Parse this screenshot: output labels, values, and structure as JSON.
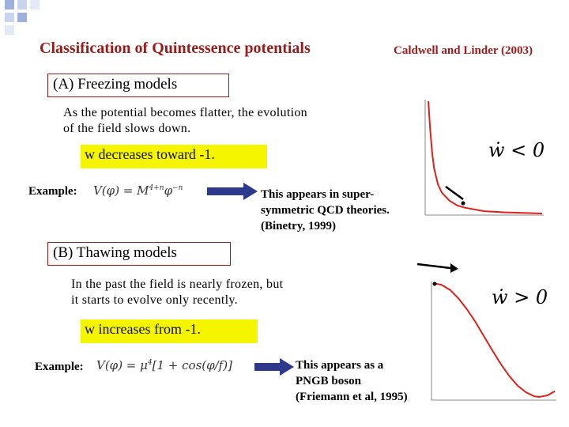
{
  "slide": {
    "title": "Classification of Quintessence potentials",
    "citation": "Caldwell and Linder (2003)"
  },
  "freezing": {
    "heading": "(A) Freezing models",
    "description_line1": "As the potential becomes flatter, the evolution",
    "description_line2": "of the field slows down.",
    "highlight": "w decreases toward  -1.",
    "example_label": "Example:",
    "formula": "V(φ) = M",
    "formula_exponent": "4+n",
    "formula_tail": "φ",
    "formula_tail_exponent": "−n",
    "note_line1": "This appears in super-",
    "note_line2": "symmetric QCD theories.",
    "note_line3": "(Binetry, 1999)",
    "condition": "ẇ < 0"
  },
  "thawing": {
    "heading": "(B)  Thawing models",
    "description_line1": "In the past the field is nearly frozen, but",
    "description_line2": "it starts to evolve only recently.",
    "highlight": "w increases from -1.",
    "example_label": "Example:",
    "formula": "V(φ) = μ",
    "formula_exponent": "4",
    "formula_tail": "[1 + cos(φ/f)]",
    "note_line1": "This appears as a",
    "note_line2": "PNGB boson",
    "note_line3": "(Friemann et al, 1995)",
    "condition": "ẇ > 0"
  },
  "colors": {
    "accent": "#9b1b1b",
    "highlight": "#f5f500",
    "arrow": "#2d3a8c",
    "curve": "#e0201a"
  },
  "chart_data": [
    {
      "type": "line",
      "title": "",
      "description_shape": "decaying potential (inverse power law)",
      "x": [
        0.05,
        0.1,
        0.15,
        0.2,
        0.3,
        0.4,
        0.6,
        0.8,
        1.0,
        1.5,
        2.0,
        3.0
      ],
      "y": [
        1.0,
        0.75,
        0.55,
        0.42,
        0.28,
        0.21,
        0.14,
        0.1,
        0.08,
        0.05,
        0.04,
        0.03
      ]
    },
    {
      "type": "line",
      "title": "",
      "description_shape": "cosine potential 1+cos(φ/f)",
      "x": [
        0,
        0.25,
        0.5,
        0.75,
        1.0,
        1.25,
        1.5,
        1.75,
        2.0,
        2.25,
        2.5,
        2.75,
        3.0,
        3.14,
        3.4,
        3.6
      ],
      "y": [
        2.0,
        1.97,
        1.88,
        1.73,
        1.54,
        1.32,
        1.07,
        0.82,
        0.58,
        0.37,
        0.2,
        0.08,
        0.01,
        0.0,
        0.03,
        0.1
      ]
    }
  ]
}
